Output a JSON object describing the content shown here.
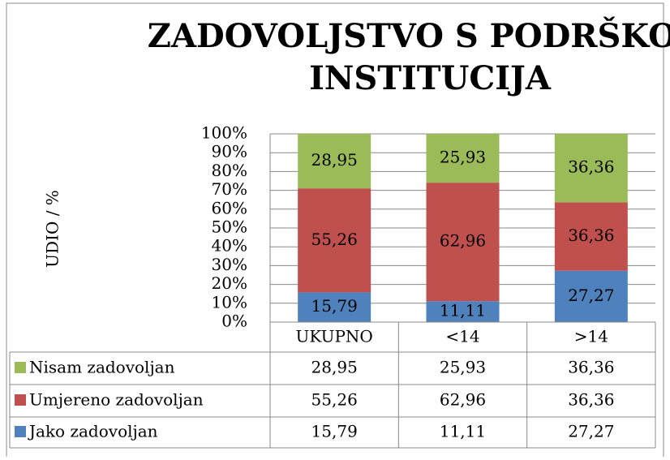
{
  "chart_data": {
    "type": "stacked_bar_100",
    "title": "ZADOVOLJSTVO S PODRŠKOM INSTITUCIJA",
    "y_label": "UDIO  / %",
    "categories": [
      "UKUPNO",
      "<14",
      ">14"
    ],
    "series": [
      {
        "name": "Jako zadovoljan",
        "color": "#4f81bd",
        "values": [
          15.79,
          11.11,
          27.27
        ],
        "value_labels": [
          "15,79",
          "11,11",
          "27,27"
        ]
      },
      {
        "name": "Umjereno zadovoljan",
        "color": "#c0504d",
        "values": [
          55.26,
          62.96,
          36.36
        ],
        "value_labels": [
          "55,26",
          "62,96",
          "36,36"
        ]
      },
      {
        "name": "Nisam zadovoljan",
        "color": "#9bbb59",
        "values": [
          28.95,
          25.93,
          36.36
        ],
        "value_labels": [
          "28,95",
          "25,93",
          "36,36"
        ]
      }
    ],
    "ylim": [
      0,
      100
    ],
    "yticks": [
      {
        "value": 0,
        "label": "0%"
      },
      {
        "value": 10,
        "label": "10%"
      },
      {
        "value": 20,
        "label": "20%"
      },
      {
        "value": 30,
        "label": "30%"
      },
      {
        "value": 40,
        "label": "40%"
      },
      {
        "value": 50,
        "label": "50%"
      },
      {
        "value": 60,
        "label": "60%"
      },
      {
        "value": 70,
        "label": "70%"
      },
      {
        "value": 80,
        "label": "80%"
      },
      {
        "value": 90,
        "label": "90%"
      },
      {
        "value": 100,
        "label": "100%"
      }
    ],
    "grid": true,
    "data_table": true
  }
}
